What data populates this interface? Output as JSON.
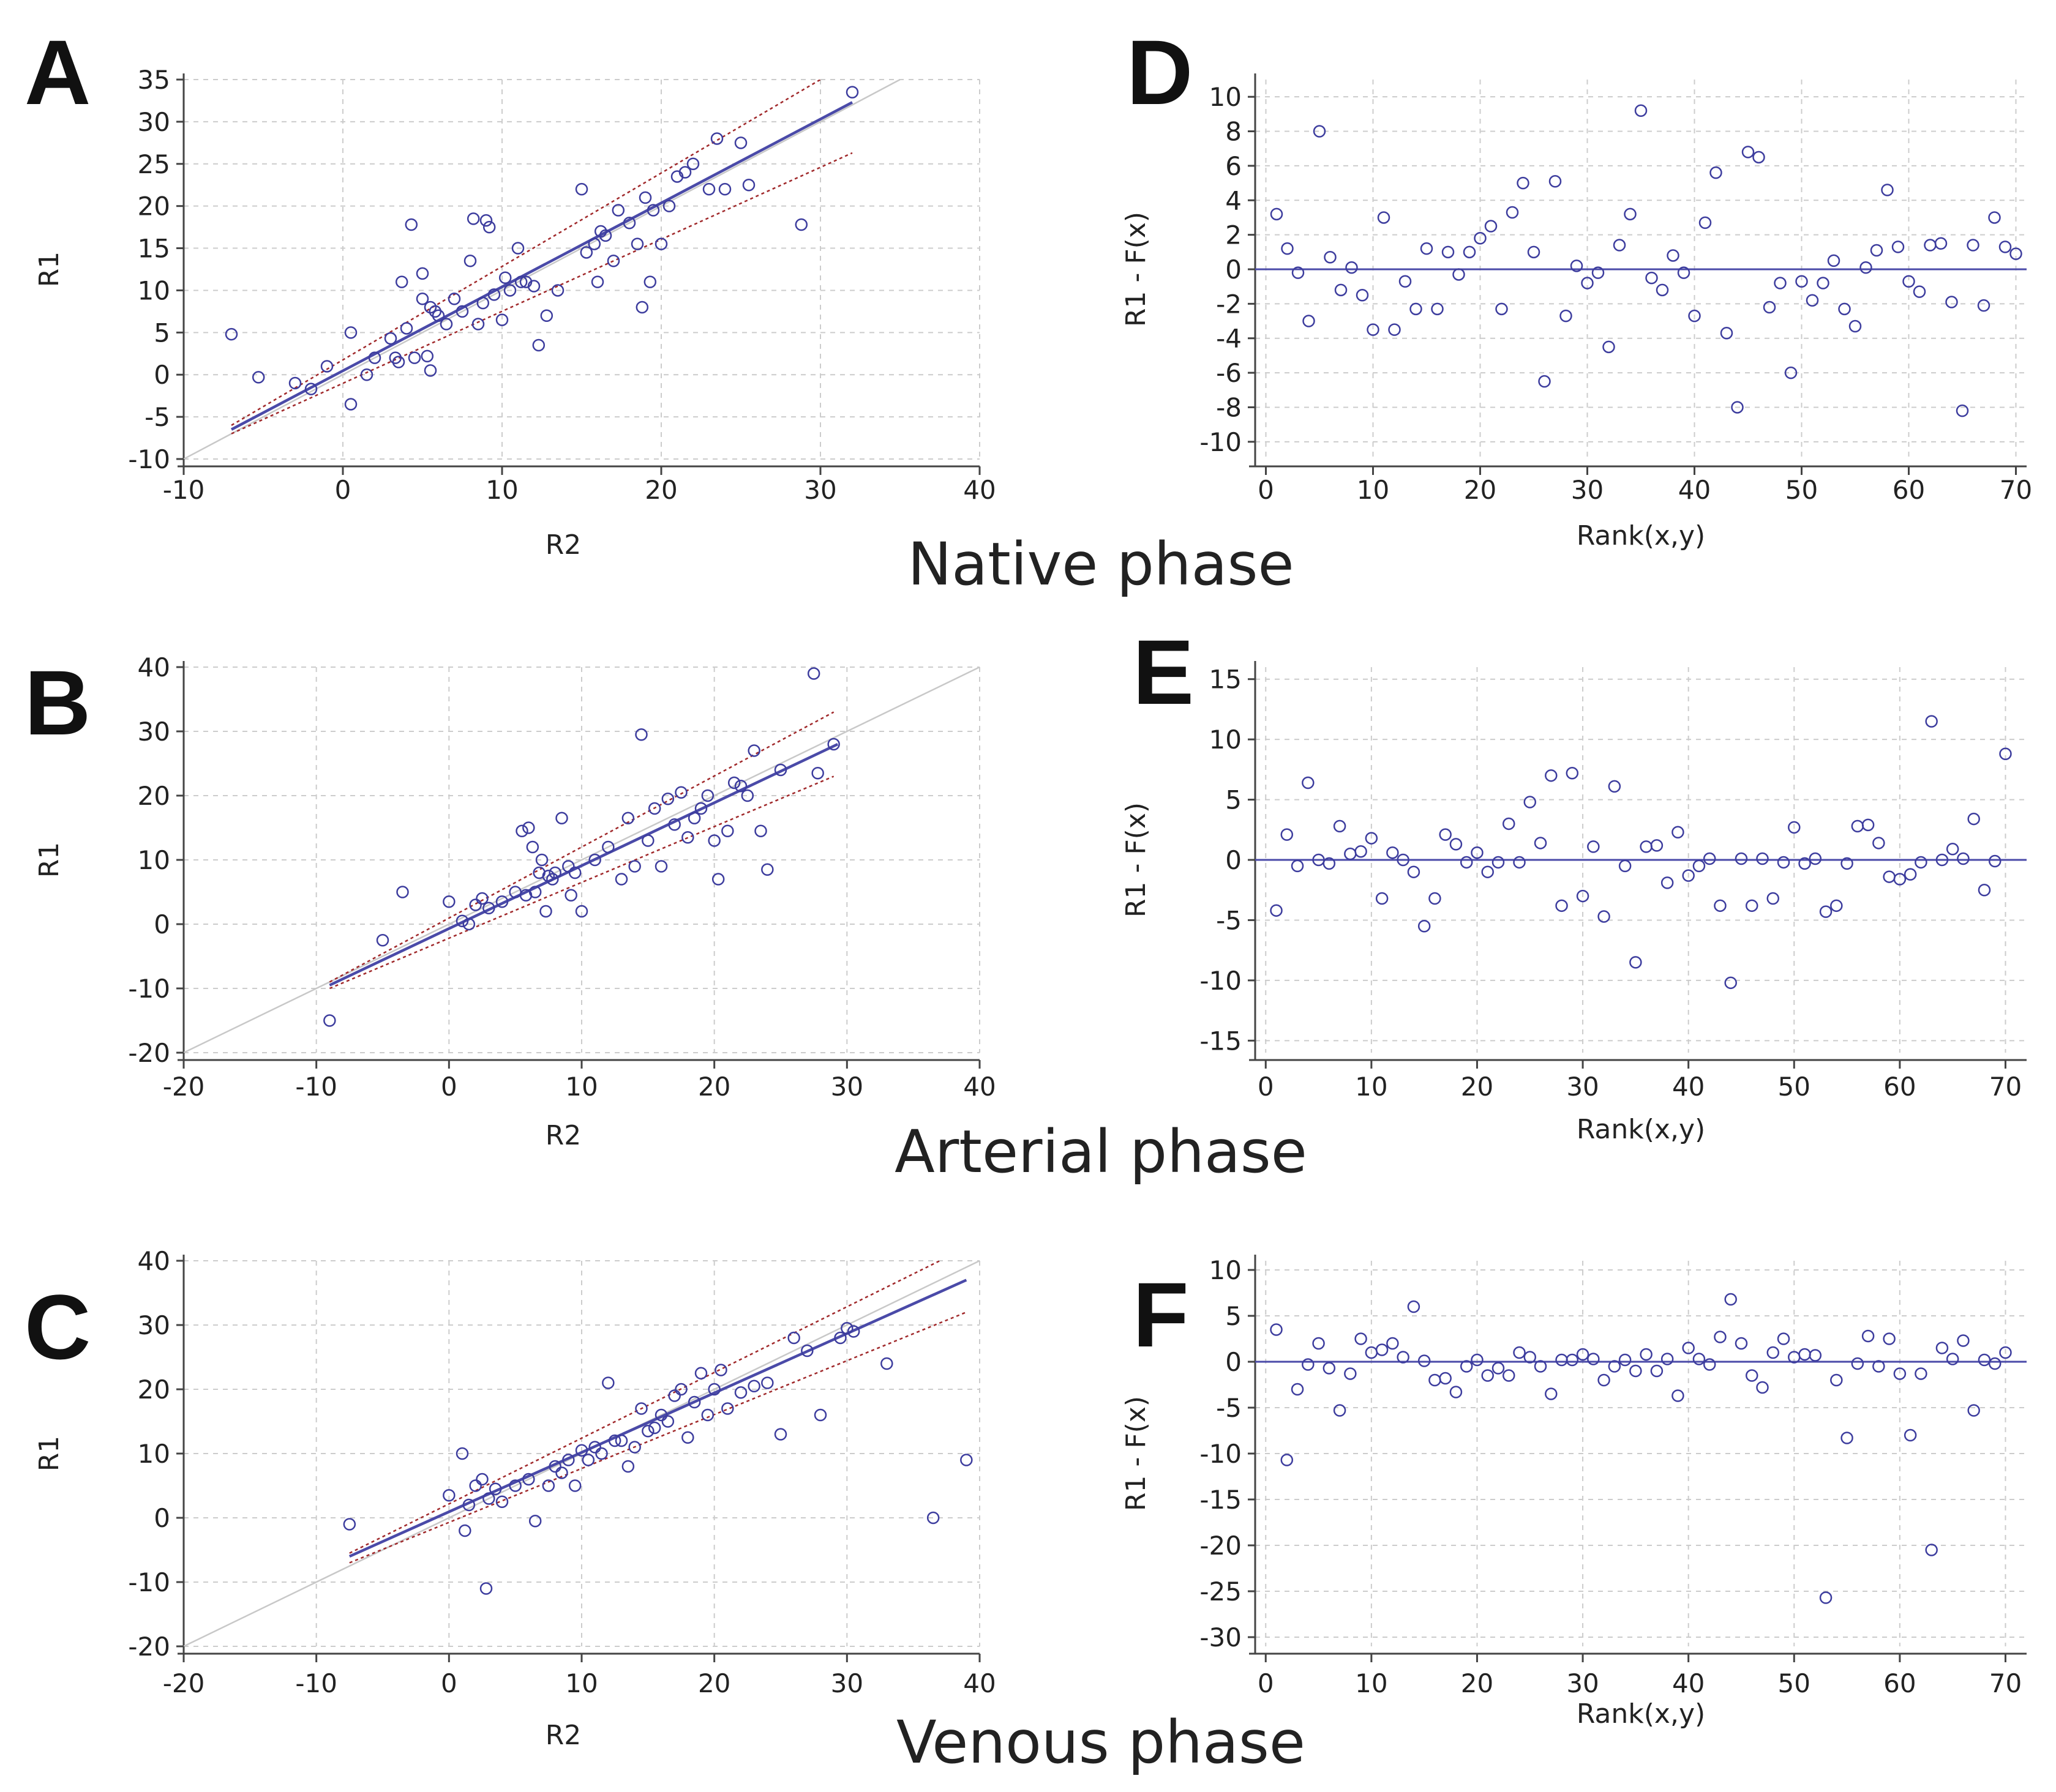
{
  "colors": {
    "points": "#3d3d9e",
    "regression": "#4a4aa8",
    "ci": "#a0282a",
    "identity": "#c8c8c8",
    "grid": "#cccccc",
    "axis": "#444444"
  },
  "phase_labels": [
    "Native phase",
    "Arterial phase",
    "Venous phase"
  ],
  "panel_letters": [
    "A",
    "B",
    "C",
    "D",
    "E",
    "F"
  ],
  "chart_data": [
    {
      "panel": "A",
      "type": "scatter",
      "title": "",
      "xlabel": "R2",
      "ylabel": "R1",
      "xlim": [
        -10,
        40
      ],
      "ylim": [
        -10,
        35
      ],
      "xticks": [
        -10,
        0,
        10,
        20,
        30,
        40
      ],
      "yticks": [
        -10,
        -5,
        0,
        5,
        10,
        15,
        20,
        25,
        30,
        35
      ],
      "regression": {
        "x0": -7,
        "y0": -6.5,
        "x1": 32,
        "y1": 32.3
      },
      "ci_upper": {
        "x0": -7,
        "y0": -6,
        "x1": 30,
        "y1": 35
      },
      "ci_lower": {
        "x0": -7,
        "y0": -7,
        "x1": 32,
        "y1": 26.3
      },
      "identity": {
        "x0": -10,
        "y0": -10,
        "x1": 35,
        "y1": 35
      },
      "x": [
        -7,
        -5.3,
        -3,
        -2,
        -1,
        0.5,
        0.5,
        1.5,
        2,
        3,
        3.3,
        3.5,
        3.7,
        4,
        4.3,
        4.5,
        5,
        5,
        5.3,
        5.5,
        5.5,
        5.8,
        6,
        6.5,
        7,
        7.5,
        8,
        8.2,
        8.5,
        8.8,
        9,
        9.2,
        9.5,
        10,
        10.2,
        10.5,
        11,
        11.2,
        11.5,
        12,
        12.3,
        12.8,
        13.5,
        15,
        15.3,
        15.8,
        16,
        16.2,
        16.5,
        17,
        17.3,
        18,
        18.5,
        18.8,
        19,
        19.3,
        19.5,
        20,
        20.5,
        21,
        21.5,
        22,
        23,
        23.5,
        24,
        25,
        25.5,
        28.8,
        32
      ],
      "y": [
        4.8,
        -0.3,
        -1,
        -1.7,
        1,
        5,
        -3.5,
        0,
        2,
        4.3,
        2,
        1.5,
        11,
        5.5,
        17.8,
        2,
        12,
        9,
        2.2,
        8,
        0.5,
        7.5,
        7,
        6,
        9,
        7.5,
        13.5,
        18.5,
        6,
        8.5,
        18.3,
        17.5,
        9.5,
        6.5,
        11.5,
        10,
        15,
        11,
        11,
        10.5,
        3.5,
        7,
        10,
        22,
        14.5,
        15.5,
        11,
        17,
        16.5,
        13.5,
        19.5,
        18,
        15.5,
        8,
        21,
        11,
        19.5,
        15.5,
        20,
        23.5,
        24,
        25,
        22,
        28,
        22,
        27.5,
        22.5,
        17.8,
        33.5
      ]
    },
    {
      "panel": "B",
      "type": "scatter",
      "title": "",
      "xlabel": "R2",
      "ylabel": "R1",
      "xlim": [
        -20,
        40
      ],
      "ylim": [
        -20,
        40
      ],
      "xticks": [
        -20,
        -10,
        0,
        10,
        20,
        30,
        40
      ],
      "yticks": [
        -20,
        -10,
        0,
        10,
        20,
        30,
        40
      ],
      "regression": {
        "x0": -9,
        "y0": -9.5,
        "x1": 29.3,
        "y1": 28
      },
      "ci_upper": {
        "x0": -9,
        "y0": -9,
        "x1": 29,
        "y1": 33
      },
      "ci_lower": {
        "x0": -9,
        "y0": -10,
        "x1": 29,
        "y1": 23
      },
      "identity": {
        "x0": -20,
        "y0": -20,
        "x1": 40,
        "y1": 40
      },
      "x": [
        -9,
        -5,
        -3.5,
        0,
        1,
        1.5,
        2,
        2.5,
        3,
        4,
        5,
        5.5,
        5.8,
        6,
        6.3,
        6.5,
        6.8,
        7,
        7.3,
        7.5,
        7.8,
        8,
        8.5,
        9,
        9.2,
        9.5,
        10,
        11,
        12,
        13,
        13.5,
        14,
        14.5,
        15,
        15.5,
        16,
        16.5,
        17,
        17.5,
        18,
        18.5,
        19,
        19.5,
        20,
        20.3,
        21,
        21.5,
        22,
        22.5,
        23,
        23.5,
        24,
        25,
        27.5,
        27.8,
        29
      ],
      "y": [
        -15,
        -2.5,
        5,
        3.5,
        0.5,
        0,
        3,
        4,
        2.5,
        3.5,
        5,
        14.5,
        4.5,
        15,
        12,
        5,
        8,
        10,
        2,
        7.5,
        7,
        8,
        16.5,
        9,
        4.5,
        8,
        2,
        10,
        12,
        7,
        16.5,
        9,
        29.5,
        13,
        18,
        9,
        19.5,
        15.5,
        20.5,
        13.5,
        16.5,
        18,
        20,
        13,
        7,
        14.5,
        22,
        21.5,
        20,
        27,
        14.5,
        8.5,
        24,
        39,
        23.5,
        28
      ]
    },
    {
      "panel": "C",
      "type": "scatter",
      "title": "",
      "xlabel": "R2",
      "ylabel": "R1",
      "xlim": [
        -20,
        40
      ],
      "ylim": [
        -20,
        40
      ],
      "xticks": [
        -20,
        -10,
        0,
        10,
        20,
        30,
        40
      ],
      "yticks": [
        -20,
        -10,
        0,
        10,
        20,
        30,
        40
      ],
      "regression": {
        "x0": -7.5,
        "y0": -6,
        "x1": 39,
        "y1": 37
      },
      "ci_upper": {
        "x0": -7.5,
        "y0": -5.5,
        "x1": 37,
        "y1": 40
      },
      "ci_lower": {
        "x0": -7.5,
        "y0": -7,
        "x1": 39,
        "y1": 32
      },
      "identity": {
        "x0": -20,
        "y0": -20,
        "x1": 40,
        "y1": 40
      },
      "x": [
        -7.5,
        0,
        1,
        1.2,
        1.5,
        2,
        2.5,
        2.8,
        3,
        3.5,
        4,
        5,
        6,
        6.5,
        7.5,
        8,
        8.5,
        9,
        9.5,
        10,
        10.5,
        11,
        11.5,
        12,
        12.5,
        13,
        13.5,
        14,
        14.5,
        15,
        15.5,
        16,
        16.5,
        17,
        17.5,
        18,
        18.5,
        19,
        19.5,
        20,
        20.5,
        21,
        22,
        23,
        24,
        25,
        26,
        27,
        28,
        29.5,
        30,
        30.5,
        33,
        36.5,
        39
      ],
      "y": [
        -1,
        3.5,
        10,
        -2,
        2,
        5,
        6,
        -11,
        3,
        4.5,
        2.5,
        5,
        6,
        -0.5,
        5,
        8,
        7,
        9,
        5,
        10.5,
        9,
        11,
        10,
        21,
        12,
        12,
        8,
        11,
        17,
        13.5,
        14,
        16,
        15,
        19,
        20,
        12.5,
        18,
        22.5,
        16,
        20,
        23,
        17,
        19.5,
        20.5,
        21,
        13,
        28,
        26,
        16,
        28,
        29.5,
        29,
        24,
        0,
        9
      ]
    },
    {
      "panel": "D",
      "type": "scatter",
      "title": "",
      "xlabel": "Rank(x,y)",
      "ylabel": "R1 - F(x)",
      "xlim": [
        -1,
        71
      ],
      "ylim": [
        -11,
        11
      ],
      "xticks": [
        0,
        10,
        20,
        30,
        40,
        50,
        60,
        70
      ],
      "yticks": [
        -10,
        -8,
        -6,
        -4,
        -2,
        0,
        2,
        4,
        6,
        8,
        10
      ],
      "zero_line": 0,
      "x": [
        1,
        2,
        3,
        4,
        5,
        6,
        7,
        8,
        9,
        10,
        11,
        12,
        13,
        14,
        15,
        16,
        17,
        18,
        19,
        20,
        21,
        22,
        23,
        24,
        25,
        26,
        27,
        28,
        29,
        30,
        31,
        32,
        33,
        34,
        35,
        36,
        37,
        38,
        39,
        40,
        41,
        42,
        43,
        44,
        45,
        46,
        47,
        48,
        49,
        50,
        51,
        52,
        53,
        54,
        55,
        56,
        57,
        58,
        59,
        60,
        61,
        62,
        63,
        64,
        65,
        66,
        67,
        68,
        69,
        70
      ],
      "y": [
        3.2,
        1.2,
        -0.2,
        -3,
        8,
        0.7,
        -1.2,
        0.1,
        -1.5,
        -3.5,
        3,
        -3.5,
        -0.7,
        -2.3,
        1.2,
        -2.3,
        1,
        -0.3,
        1,
        1.8,
        2.5,
        -2.3,
        3.3,
        5,
        1,
        -6.5,
        5.1,
        -2.7,
        0.2,
        -0.8,
        -0.2,
        -4.5,
        1.4,
        3.2,
        9.2,
        -0.5,
        -1.2,
        0.8,
        -0.2,
        -2.7,
        2.7,
        5.6,
        -3.7,
        -8,
        6.8,
        6.5,
        -2.2,
        -0.8,
        -6,
        -0.7,
        -1.8,
        -0.8,
        0.5,
        -2.3,
        -3.3,
        0.1,
        1.1,
        4.6,
        1.3,
        -0.7,
        -1.3,
        1.4,
        1.5,
        -1.9,
        -8.2,
        1.4,
        -2.1,
        3,
        1.3,
        0.9
      ]
    },
    {
      "panel": "E",
      "type": "scatter",
      "title": "",
      "xlabel": "Rank(x,y)",
      "ylabel": "R1 - F(x)",
      "xlim": [
        -1,
        72
      ],
      "ylim": [
        -16,
        16
      ],
      "xticks": [
        0,
        10,
        20,
        30,
        40,
        50,
        60,
        70
      ],
      "yticks": [
        -15,
        -10,
        -5,
        0,
        5,
        10,
        15
      ],
      "zero_line": 0,
      "x": [
        1,
        2,
        3,
        4,
        5,
        6,
        7,
        8,
        9,
        10,
        11,
        12,
        13,
        14,
        15,
        16,
        17,
        18,
        19,
        20,
        21,
        22,
        23,
        24,
        25,
        26,
        27,
        28,
        29,
        30,
        31,
        32,
        33,
        34,
        35,
        36,
        37,
        38,
        39,
        40,
        41,
        42,
        43,
        44,
        45,
        46,
        47,
        48,
        49,
        50,
        51,
        52,
        53,
        54,
        55,
        56,
        57,
        58,
        59,
        60,
        61,
        62,
        63,
        64,
        65,
        66,
        67,
        68,
        69,
        70
      ],
      "y": [
        -4.2,
        2.1,
        -0.5,
        6.4,
        0,
        -0.3,
        2.8,
        0.5,
        0.7,
        1.8,
        -3.2,
        0.6,
        0,
        -1,
        -5.5,
        -3.2,
        2.1,
        1.3,
        -0.2,
        0.6,
        -1,
        -0.2,
        3,
        -0.2,
        4.8,
        1.4,
        7,
        -3.8,
        7.2,
        -3,
        1.1,
        -4.7,
        6.1,
        -0.5,
        -8.5,
        1.1,
        1.2,
        -1.9,
        2.3,
        -1.3,
        -0.5,
        0.1,
        -3.8,
        -10.2,
        0.1,
        -3.8,
        0.1,
        -3.2,
        -0.2,
        2.7,
        -0.3,
        0.1,
        -4.3,
        -3.8,
        -0.3,
        2.8,
        2.9,
        1.4,
        -1.4,
        -1.6,
        -1.2,
        -0.2,
        11.5,
        0,
        0.9,
        0.1,
        3.4,
        -2.5,
        -0.1,
        8.8
      ]
    },
    {
      "panel": "F",
      "type": "scatter",
      "title": "",
      "xlabel": "Rank(x,y)",
      "ylabel": "R1 - F(x)",
      "xlim": [
        -1,
        72
      ],
      "ylim": [
        -31,
        11
      ],
      "xticks": [
        0,
        10,
        20,
        30,
        40,
        50,
        60,
        70
      ],
      "yticks": [
        -30,
        -25,
        -20,
        -15,
        -10,
        -5,
        0,
        5,
        10
      ],
      "zero_line": 0,
      "x": [
        1,
        2,
        3,
        4,
        5,
        6,
        7,
        8,
        9,
        10,
        11,
        12,
        13,
        14,
        15,
        16,
        17,
        18,
        19,
        20,
        21,
        22,
        23,
        24,
        25,
        26,
        27,
        28,
        29,
        30,
        31,
        32,
        33,
        34,
        35,
        36,
        37,
        38,
        39,
        40,
        41,
        42,
        43,
        44,
        45,
        46,
        47,
        48,
        49,
        50,
        51,
        52,
        53,
        54,
        55,
        56,
        57,
        58,
        59,
        60,
        61,
        62,
        63,
        64,
        65,
        66,
        67,
        68,
        69,
        70
      ],
      "y": [
        3.5,
        -10.7,
        -3,
        -0.3,
        2,
        -0.7,
        -5.3,
        -1.3,
        2.5,
        1,
        1.3,
        2,
        0.5,
        6,
        0.1,
        -2,
        -1.8,
        -3.3,
        -0.5,
        0.2,
        -1.5,
        -0.7,
        -1.5,
        1,
        0.5,
        -0.5,
        -3.5,
        0.2,
        0.2,
        0.8,
        0.3,
        -2,
        -0.5,
        0.2,
        -1,
        0.8,
        -1,
        0.3,
        -3.7,
        1.5,
        0.3,
        -0.3,
        2.7,
        6.8,
        2,
        -1.5,
        -2.8,
        1,
        2.5,
        0.5,
        0.8,
        0.7,
        -25.7,
        -2,
        -8.3,
        -0.2,
        2.8,
        -0.5,
        2.5,
        -1.3,
        -8,
        -1.3,
        -20.5,
        1.5,
        0.3,
        2.3,
        -5.3,
        0.2,
        -0.2,
        1
      ]
    }
  ]
}
